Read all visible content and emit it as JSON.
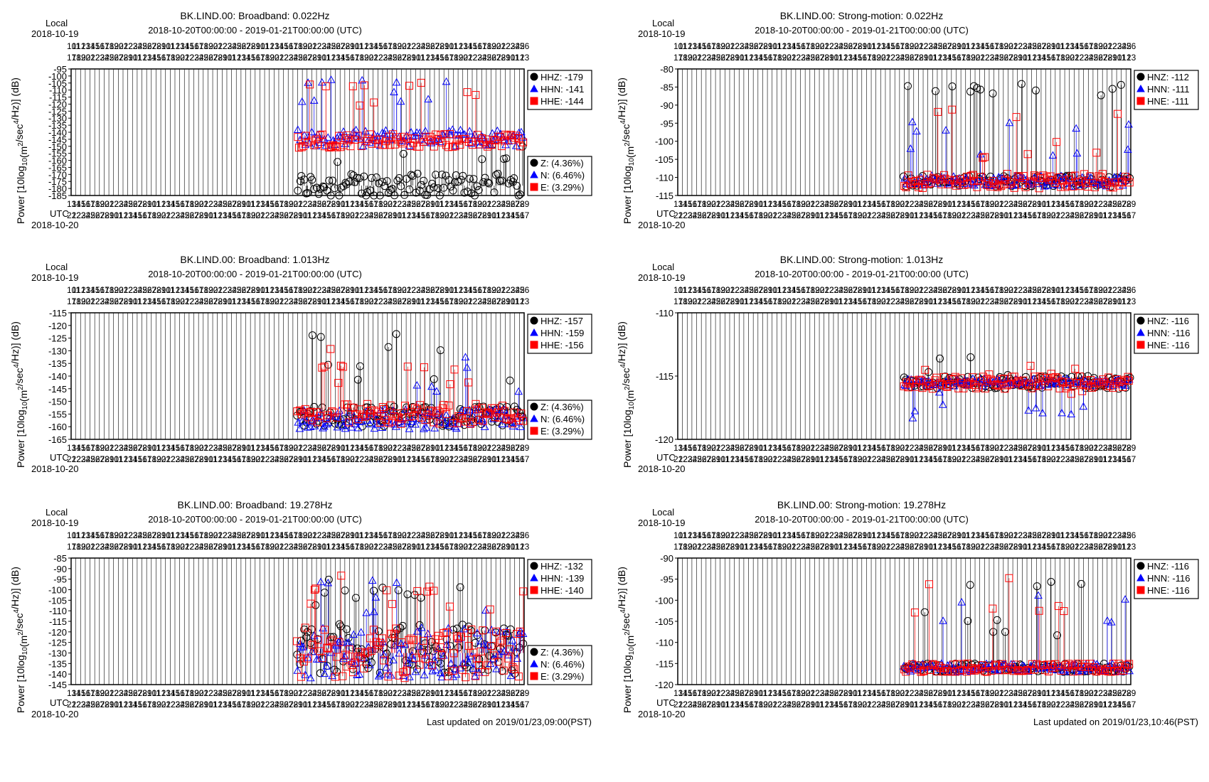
{
  "local_label": "Local",
  "utc_label": "UTC",
  "date_label": "2018-10-20",
  "date_label_top": "2018-10-19",
  "range_label": "2018-10-20T00:00:00 - 2019-01-21T00:00:00 (UTC)",
  "ylabel_main": "Power [10log",
  "ylabel_sub": "10",
  "ylabel_rest1": "(m",
  "ylabel_sup1": "2",
  "ylabel_rest2": "/sec",
  "ylabel_sup2": "4",
  "ylabel_rest3": "/Hz)] (dB)",
  "updated": [
    "Last updated on 2019/01/23,09:00(PST)",
    "Last updated on 2019/01/23,10:46(PST)"
  ],
  "colors": {
    "z": "#000000",
    "n": "#0000ff",
    "e": "#ff0000"
  },
  "chart_data": [
    {
      "type": "scatter",
      "title": "BK.LIND.00: Broadband: 0.022Hz",
      "ylabel": "Power [10log10(m2/sec4/Hz)] (dB)",
      "ylim": [
        -185,
        -95
      ],
      "yticks": [
        -95,
        -100,
        -105,
        -110,
        -115,
        -120,
        -125,
        -130,
        -135,
        -140,
        -145,
        -150,
        -155,
        -160,
        -165,
        -170,
        -175,
        -180,
        -185
      ],
      "xlim": [
        "2018-10-20",
        "2019-01-21"
      ],
      "grid": true,
      "data_start_frac": 0.5,
      "series_meta": [
        {
          "name": "HHZ: -179",
          "base": -178,
          "spread": 9,
          "spikes": [
            -160,
            -155,
            -150
          ]
        },
        {
          "name": "HHN: -141",
          "base": -144,
          "spread": 6,
          "spikes": [
            -104,
            -110,
            -118
          ]
        },
        {
          "name": "HHE: -144",
          "base": -146,
          "spread": 5,
          "spikes": [
            -106,
            -112,
            -120
          ]
        }
      ],
      "legend_pct": [
        "Z: (4.36%)",
        "N: (6.46%)",
        "E: (3.29%)"
      ]
    },
    {
      "type": "scatter",
      "title": "BK.LIND.00: Strong-motion: 0.022Hz",
      "ylabel": "Power [10log10(m2/sec4/Hz)] (dB)",
      "ylim": [
        -115,
        -80
      ],
      "yticks": [
        -80,
        -85,
        -90,
        -95,
        -100,
        -105,
        -110,
        -115
      ],
      "xlim": [
        "2018-10-20",
        "2019-01-21"
      ],
      "grid": true,
      "data_start_frac": 0.5,
      "series_meta": [
        {
          "name": "HNZ: -112",
          "base": -111,
          "spread": 1.5,
          "spikes": [
            -85,
            -86
          ]
        },
        {
          "name": "HNN: -111",
          "base": -111,
          "spread": 1.5,
          "spikes": [
            -96,
            -103
          ]
        },
        {
          "name": "HNE: -111",
          "base": -111,
          "spread": 2,
          "spikes": [
            -92,
            -101,
            -104
          ]
        }
      ],
      "legend_pct": []
    },
    {
      "type": "scatter",
      "title": "BK.LIND.00: Broadband: 1.013Hz",
      "ylabel": "Power [10log10(m2/sec4/Hz)] (dB)",
      "ylim": [
        -165,
        -115
      ],
      "yticks": [
        -115,
        -120,
        -125,
        -130,
        -135,
        -140,
        -145,
        -150,
        -155,
        -160,
        -165
      ],
      "xlim": [
        "2018-10-20",
        "2019-01-21"
      ],
      "grid": true,
      "data_start_frac": 0.5,
      "series_meta": [
        {
          "name": "HHZ: -157",
          "base": -156,
          "spread": 4,
          "spikes": [
            -124,
            -129,
            -137,
            -141
          ]
        },
        {
          "name": "HHN: -159",
          "base": -157,
          "spread": 4,
          "spikes": [
            -133,
            -138,
            -145
          ]
        },
        {
          "name": "HHE: -156",
          "base": -155,
          "spread": 4,
          "spikes": [
            -130,
            -136,
            -142
          ]
        }
      ],
      "legend_pct": [
        "Z: (4.36%)",
        "N: (6.46%)",
        "E: (3.29%)"
      ]
    },
    {
      "type": "scatter",
      "title": "BK.LIND.00: Strong-motion: 1.013Hz",
      "ylabel": "Power [10log10(m2/sec4/Hz)] (dB)",
      "ylim": [
        -120,
        -110
      ],
      "yticks": [
        -110,
        -115,
        -120
      ],
      "xlim": [
        "2018-10-20",
        "2019-01-21"
      ],
      "grid": true,
      "data_start_frac": 0.5,
      "series_meta": [
        {
          "name": "HNZ: -116",
          "base": -115.5,
          "spread": 0.5,
          "spikes": [
            -115,
            -115
          ]
        },
        {
          "name": "HNN: -116",
          "base": -115.5,
          "spread": 0.3,
          "spikes": [
            -117,
            -117
          ]
        },
        {
          "name": "HNE: -116",
          "base": -115.5,
          "spread": 0.5,
          "spikes": [
            -115,
            -115
          ]
        }
      ],
      "legend_pct": []
    },
    {
      "type": "scatter",
      "title": "BK.LIND.00: Broadband: 19.278Hz",
      "ylabel": "Power [10log10(m2/sec4/Hz)] (dB)",
      "ylim": [
        -145,
        -85
      ],
      "yticks": [
        -85,
        -90,
        -95,
        -100,
        -105,
        -110,
        -115,
        -120,
        -125,
        -130,
        -135,
        -140,
        -145
      ],
      "xlim": [
        "2018-10-20",
        "2019-01-21"
      ],
      "grid": true,
      "data_start_frac": 0.5,
      "series_meta": [
        {
          "name": "HHZ: -132",
          "base": -128,
          "spread": 12,
          "spikes": [
            -95,
            -100,
            -103,
            -108
          ]
        },
        {
          "name": "HHN: -139",
          "base": -130,
          "spread": 12,
          "spikes": [
            -97,
            -105,
            -110
          ]
        },
        {
          "name": "HHE: -140",
          "base": -130,
          "spread": 12,
          "spikes": [
            -93,
            -100,
            -108
          ]
        }
      ],
      "legend_pct": [
        "Z: (4.36%)",
        "N: (6.46%)",
        "E: (3.29%)"
      ]
    },
    {
      "type": "scatter",
      "title": "BK.LIND.00: Strong-motion: 19.278Hz",
      "ylabel": "Power [10log10(m2/sec4/Hz)] (dB)",
      "ylim": [
        -120,
        -90
      ],
      "yticks": [
        -90,
        -95,
        -100,
        -105,
        -110,
        -115,
        -120
      ],
      "xlim": [
        "2018-10-20",
        "2019-01-21"
      ],
      "grid": true,
      "data_start_frac": 0.5,
      "series_meta": [
        {
          "name": "HNZ: -116",
          "base": -116,
          "spread": 1,
          "spikes": [
            -97,
            -104,
            -108
          ]
        },
        {
          "name": "HNN: -116",
          "base": -116,
          "spread": 1,
          "spikes": [
            -100,
            -106
          ]
        },
        {
          "name": "HNE: -116",
          "base": -116,
          "spread": 1,
          "spikes": [
            -95,
            -102
          ]
        }
      ],
      "legend_pct": []
    }
  ]
}
